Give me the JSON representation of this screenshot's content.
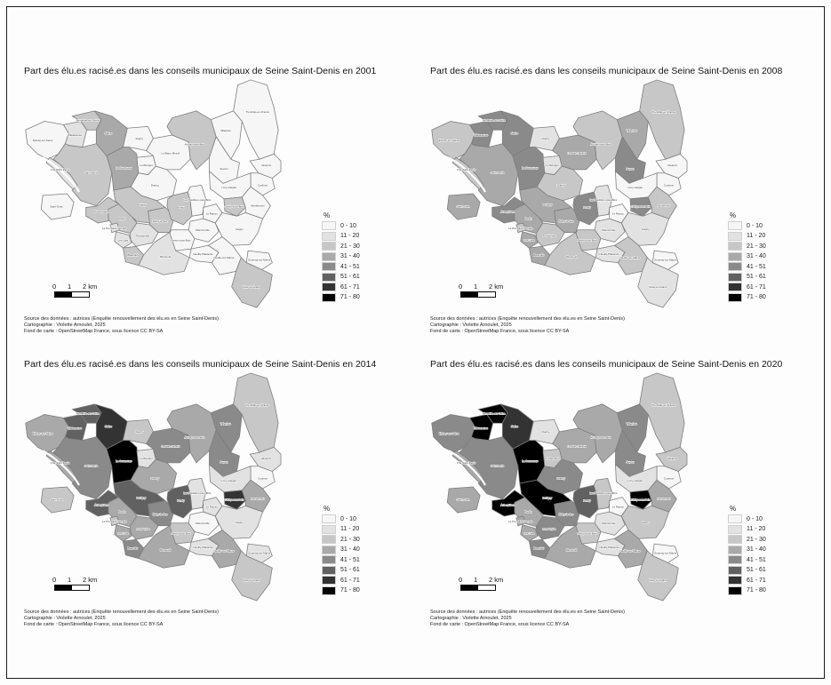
{
  "legend": {
    "title": "%",
    "classes": [
      {
        "label": "0 - 10",
        "color": "#f6f6f6"
      },
      {
        "label": "11 - 20",
        "color": "#e2e2e2"
      },
      {
        "label": "21 - 30",
        "color": "#c7c7c7"
      },
      {
        "label": "31 - 40",
        "color": "#a9a9a9"
      },
      {
        "label": "41 - 51",
        "color": "#8a8a8a"
      },
      {
        "label": "51 - 61",
        "color": "#616161"
      },
      {
        "label": "61 - 71",
        "color": "#333333"
      },
      {
        "label": "71 - 80",
        "color": "#000000"
      }
    ]
  },
  "scalebar": {
    "tick0": "0",
    "tick1": "1",
    "tick2": "2 km"
  },
  "source": {
    "lines": [
      "Source des données : autrices (Enquête renouvellement des élu.es en Seine Saint-Denis)",
      "Cartographie : Violette Arnoulet, 2025",
      "Fond de carte : OpenStreetMap France, sous licence CC BY-SA"
    ]
  },
  "communes": [
    {
      "id": "epinay",
      "name": "Épinay-sur-Seine"
    },
    {
      "id": "villetaneuse",
      "name": "Villetaneuse"
    },
    {
      "id": "pierrefitte",
      "name": "Pierrefitte-sur-Seine"
    },
    {
      "id": "stains",
      "name": "Stains"
    },
    {
      "id": "dugny",
      "name": "Dugny"
    },
    {
      "id": "ile_saint_denis",
      "name": "L'Île-Saint-Denis"
    },
    {
      "id": "saint_denis",
      "name": "Saint-Denis"
    },
    {
      "id": "saint_ouen",
      "name": "Saint-Ouen"
    },
    {
      "id": "aubervilliers",
      "name": "Aubervilliers"
    },
    {
      "id": "la_courneuve",
      "name": "La Courneuve"
    },
    {
      "id": "le_bourget",
      "name": "Le Bourget"
    },
    {
      "id": "drancy",
      "name": "Drancy"
    },
    {
      "id": "le_blanc_mesnil",
      "name": "Le Blanc-Mesnil"
    },
    {
      "id": "pantin",
      "name": "Pantin"
    },
    {
      "id": "pre_saint_gervais",
      "name": "Le Pré-Saint-Gervais"
    },
    {
      "id": "les_lilas",
      "name": "Les Lilas"
    },
    {
      "id": "bagnolet",
      "name": "Bagnolet"
    },
    {
      "id": "romainville",
      "name": "Romainville"
    },
    {
      "id": "noisy_le_sec",
      "name": "Noisy-le-Sec"
    },
    {
      "id": "bobigny",
      "name": "Bobigny"
    },
    {
      "id": "bondy",
      "name": "Bondy"
    },
    {
      "id": "pavillons",
      "name": "Les Pavillons-sous-Bois"
    },
    {
      "id": "aulnay",
      "name": "Aulnay-sous-Bois"
    },
    {
      "id": "villepinte",
      "name": "Villepinte"
    },
    {
      "id": "tremblay",
      "name": "Tremblay-en-France"
    },
    {
      "id": "sevran",
      "name": "Sevran"
    },
    {
      "id": "vaujours",
      "name": "Vaujours"
    },
    {
      "id": "coubron",
      "name": "Coubron"
    },
    {
      "id": "livry_gargan",
      "name": "Livry-Gargan"
    },
    {
      "id": "clichy",
      "name": "Clichy-sous-Bois"
    },
    {
      "id": "montfermeil",
      "name": "Montfermeil"
    },
    {
      "id": "raincy",
      "name": "Le Raincy"
    },
    {
      "id": "villemomble",
      "name": "Villemomble"
    },
    {
      "id": "gagny",
      "name": "Gagny"
    },
    {
      "id": "rosny",
      "name": "Rosny-sous-Bois"
    },
    {
      "id": "montreuil",
      "name": "Montreuil"
    },
    {
      "id": "neuilly_plaisance",
      "name": "Neuilly-Plaisance"
    },
    {
      "id": "neuilly_sur_marne",
      "name": "Neuilly-sur-Marne"
    },
    {
      "id": "gournay",
      "name": "Gournay-sur-Marne"
    },
    {
      "id": "noisy_le_grand",
      "name": "Noisy-le-Grand"
    }
  ],
  "maps": [
    {
      "year": "2001",
      "title": "Part des élu.es racisé.es dans les conseils municipaux de Seine Saint-Denis en 2001",
      "values": [
        0,
        1,
        2,
        3,
        0,
        1,
        2,
        0,
        2,
        3,
        0,
        0,
        0,
        2,
        1,
        1,
        2,
        1,
        2,
        2,
        2,
        0,
        2,
        0,
        0,
        0,
        0,
        0,
        0,
        2,
        0,
        0,
        0,
        0,
        0,
        1,
        0,
        0,
        0,
        2
      ]
    },
    {
      "year": "2008",
      "title": "Part des élu.es racisé.es dans les conseils municipaux de Seine Saint-Denis en 2008",
      "values": [
        2,
        4,
        4,
        4,
        1,
        2,
        3,
        3,
        4,
        4,
        1,
        2,
        3,
        3,
        2,
        3,
        3,
        2,
        3,
        3,
        4,
        1,
        2,
        3,
        2,
        4,
        0,
        0,
        0,
        4,
        2,
        0,
        1,
        1,
        2,
        2,
        1,
        2,
        0,
        1
      ]
    },
    {
      "year": "2014",
      "title": "Part des élu.es racisé.es dans les conseils municipaux de Seine Saint-Denis en 2014",
      "values": [
        3,
        5,
        5,
        6,
        2,
        3,
        4,
        2,
        5,
        7,
        1,
        3,
        4,
        3,
        2,
        3,
        4,
        3,
        4,
        5,
        5,
        1,
        3,
        4,
        2,
        4,
        1,
        0,
        1,
        6,
        3,
        1,
        0,
        1,
        2,
        3,
        1,
        3,
        1,
        2
      ]
    },
    {
      "year": "2020",
      "title": "Part des élu.es racisé.es dans les conseils municipaux de Seine Saint-Denis en 2020",
      "values": [
        4,
        7,
        7,
        6,
        1,
        3,
        4,
        3,
        7,
        7,
        2,
        4,
        3,
        3,
        3,
        3,
        4,
        4,
        4,
        7,
        5,
        2,
        3,
        4,
        2,
        4,
        2,
        0,
        1,
        7,
        3,
        0,
        1,
        2,
        2,
        3,
        1,
        3,
        0,
        2
      ]
    }
  ]
}
